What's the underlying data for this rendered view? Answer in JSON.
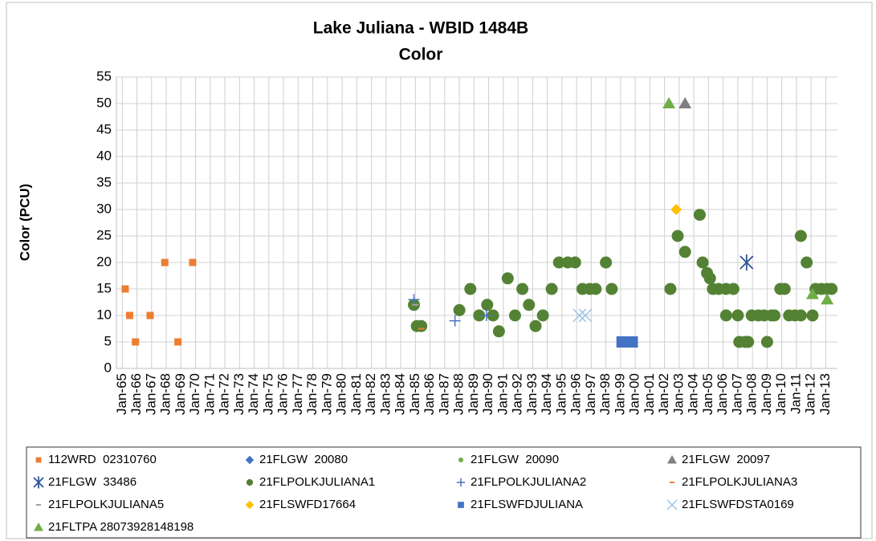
{
  "chart_data": {
    "type": "scatter",
    "title": "Lake Juliana - WBID 1484B",
    "subtitle": "Color",
    "y_label": "Color (PCU)",
    "xlim": [
      1964.6,
      2013.8
    ],
    "xticks": [
      {
        "value": 1965,
        "label": "Jan-65"
      },
      {
        "value": 1966,
        "label": "Jan-66"
      },
      {
        "value": 1967,
        "label": "Jan-67"
      },
      {
        "value": 1968,
        "label": "Jan-68"
      },
      {
        "value": 1969,
        "label": "Jan-69"
      },
      {
        "value": 1970,
        "label": "Jan-70"
      },
      {
        "value": 1971,
        "label": "Jan-71"
      },
      {
        "value": 1972,
        "label": "Jan-72"
      },
      {
        "value": 1973,
        "label": "Jan-73"
      },
      {
        "value": 1974,
        "label": "Jan-74"
      },
      {
        "value": 1975,
        "label": "Jan-75"
      },
      {
        "value": 1976,
        "label": "Jan-76"
      },
      {
        "value": 1977,
        "label": "Jan-77"
      },
      {
        "value": 1978,
        "label": "Jan-78"
      },
      {
        "value": 1979,
        "label": "Jan-79"
      },
      {
        "value": 1980,
        "label": "Jan-80"
      },
      {
        "value": 1981,
        "label": "Jan-81"
      },
      {
        "value": 1982,
        "label": "Jan-82"
      },
      {
        "value": 1983,
        "label": "Jan-83"
      },
      {
        "value": 1984,
        "label": "Jan-84"
      },
      {
        "value": 1985,
        "label": "Jan-85"
      },
      {
        "value": 1986,
        "label": "Jan-86"
      },
      {
        "value": 1987,
        "label": "Jan-87"
      },
      {
        "value": 1988,
        "label": "Jan-88"
      },
      {
        "value": 1989,
        "label": "Jan-89"
      },
      {
        "value": 1990,
        "label": "Jan-90"
      },
      {
        "value": 1991,
        "label": "Jan-91"
      },
      {
        "value": 1992,
        "label": "Jan-92"
      },
      {
        "value": 1993,
        "label": "Jan-93"
      },
      {
        "value": 1994,
        "label": "Jan-94"
      },
      {
        "value": 1995,
        "label": "Jan-95"
      },
      {
        "value": 1996,
        "label": "Jan-96"
      },
      {
        "value": 1997,
        "label": "Jan-97"
      },
      {
        "value": 1998,
        "label": "Jan-98"
      },
      {
        "value": 1999,
        "label": "Jan-99"
      },
      {
        "value": 2000,
        "label": "Jan-00"
      },
      {
        "value": 2001,
        "label": "Jan-01"
      },
      {
        "value": 2002,
        "label": "Jan-02"
      },
      {
        "value": 2003,
        "label": "Jan-03"
      },
      {
        "value": 2004,
        "label": "Jan-04"
      },
      {
        "value": 2005,
        "label": "Jan-05"
      },
      {
        "value": 2006,
        "label": "Jan-06"
      },
      {
        "value": 2007,
        "label": "Jan-07"
      },
      {
        "value": 2008,
        "label": "Jan-08"
      },
      {
        "value": 2009,
        "label": "Jan-09"
      },
      {
        "value": 2010,
        "label": "Jan-10"
      },
      {
        "value": 2011,
        "label": "Jan-11"
      },
      {
        "value": 2012,
        "label": "Jan-12"
      },
      {
        "value": 2013,
        "label": "Jan-13"
      }
    ],
    "ylim": [
      0,
      55
    ],
    "yticks": [
      0,
      5,
      10,
      15,
      20,
      25,
      30,
      35,
      40,
      45,
      50,
      55
    ],
    "grid": true,
    "legend": "bottom",
    "series": [
      {
        "name": "112WRD  02310760",
        "color": "#ed7d31",
        "marker": "square",
        "x": [
          1965.2,
          1965.5,
          1965.9,
          1966.9,
          1967.9,
          1968.8,
          1969.8
        ],
        "values": [
          15,
          10,
          5,
          10,
          20,
          5,
          20
        ]
      },
      {
        "name": "21FLGW  20080",
        "color": "#4472c4",
        "marker": "diamond",
        "x": [
          1984.9
        ],
        "values": [
          12
        ]
      },
      {
        "name": "21FLGW  20090",
        "color": "#70ad47",
        "marker": "circle",
        "x": [
          1985.0,
          1985.2
        ],
        "values": [
          12,
          8
        ]
      },
      {
        "name": "21FLGW  20097",
        "color": "#808080",
        "marker": "triangle",
        "x": [
          2003.4
        ],
        "values": [
          50
        ]
      },
      {
        "name": "21FLGW  33486",
        "color": "#2f5597",
        "marker": "star",
        "x": [
          2007.6
        ],
        "values": [
          20
        ]
      },
      {
        "name": "21FLPOLKJULIANA1",
        "color": "#548235",
        "marker": "bigcircle",
        "x": [
          1984.9,
          1985.1,
          1985.4,
          1988.0,
          1988.75,
          1989.35,
          1989.9,
          1990.3,
          1990.7,
          1991.3,
          1991.8,
          1992.3,
          1992.75,
          1993.2,
          1993.7,
          1994.3,
          1994.8,
          1995.4,
          1995.9,
          1996.4,
          1996.9,
          1997.3,
          1998.0,
          1998.4,
          2002.4,
          2002.9,
          2003.4,
          2004.4,
          2004.6,
          2004.9,
          2005.1,
          2005.3,
          2005.7,
          2006.2,
          2006.7,
          2006.2,
          2007.0,
          2007.1,
          2007.5,
          2007.7,
          2007.95,
          2008.4,
          2008.8,
          2009.0,
          2009.3,
          2009.5,
          2009.9,
          2010.2,
          2010.5,
          2010.9,
          2011.3,
          2011.3,
          2011.7,
          2012.1,
          2012.3,
          2012.7,
          2013.1,
          2013.4
        ],
        "values": [
          12,
          8,
          8,
          11,
          15,
          10,
          12,
          10,
          7,
          17,
          10,
          15,
          12,
          8,
          10,
          15,
          20,
          20,
          20,
          15,
          15,
          15,
          20,
          15,
          15,
          25,
          22,
          29,
          20,
          18,
          17,
          15,
          15,
          15,
          15,
          10,
          10,
          5,
          5,
          5,
          10,
          10,
          10,
          5,
          10,
          10,
          15,
          15,
          10,
          10,
          25,
          10,
          20,
          10,
          15,
          15,
          15,
          15
        ]
      },
      {
        "name": "21FLPOLKJULIANA2",
        "color": "#4472c4",
        "marker": "plus",
        "x": [
          1984.9,
          1987.7,
          1989.85
        ],
        "values": [
          13,
          9,
          10
        ]
      },
      {
        "name": "21FLPOLKJULIANA3",
        "color": "#ed7d31",
        "marker": "dash",
        "x": [
          1985.4
        ],
        "values": [
          7.5
        ]
      },
      {
        "name": "21FLPOLKJULIANA5",
        "color": "#a5a5a5",
        "marker": "dash",
        "x": [
          1985.0
        ],
        "values": [
          12
        ]
      },
      {
        "name": "21FLSWFD17664",
        "color": "#ffc000",
        "marker": "diamond",
        "x": [
          2002.8
        ],
        "values": [
          30
        ]
      },
      {
        "name": "21FLSWFDJULIANA",
        "color": "#4472c4",
        "marker": "bigsquare",
        "x": [
          1999.1,
          1999.4,
          1999.8
        ],
        "values": [
          5,
          5,
          5
        ]
      },
      {
        "name": "21FLSWFDSTA0169",
        "color": "#9dc3e6",
        "marker": "x",
        "x": [
          1996.2,
          1996.6
        ],
        "values": [
          10,
          10
        ]
      },
      {
        "name": "21FLTPA 28073928148198",
        "color": "#70ad47",
        "marker": "triangle",
        "x": [
          2002.3,
          2012.1,
          2013.1
        ],
        "values": [
          50,
          14,
          13
        ]
      }
    ]
  }
}
